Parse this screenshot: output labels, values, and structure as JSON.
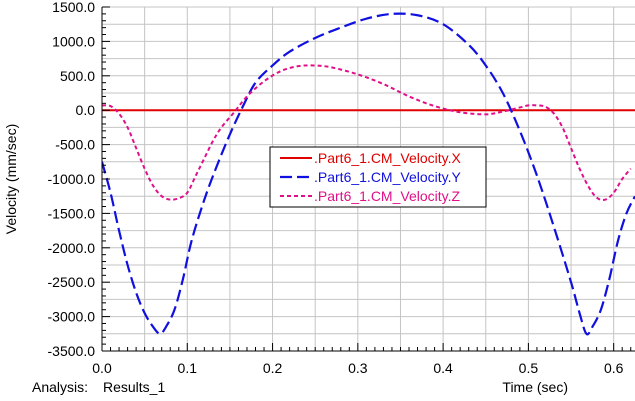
{
  "analysis": {
    "label": "Analysis:",
    "name": "Results_1"
  },
  "chart_data": {
    "type": "line",
    "xlabel": "Time (sec)",
    "ylabel": "Velocity (mm/sec)",
    "xlim": [
      0.0,
      0.625
    ],
    "ylim": [
      -3500.0,
      1500.0
    ],
    "x_ticks": [
      "0.0",
      "0.1",
      "0.2",
      "0.3",
      "0.4",
      "0.5",
      "0.6"
    ],
    "y_ticks": [
      "1500.0",
      "1000.0",
      "500.0",
      "0.0",
      "-500.0",
      "-1000.0",
      "-1500.0",
      "-2000.0",
      "-2500.0",
      "-3000.0",
      "-3500.0"
    ],
    "grid": true,
    "legend_placement": "center",
    "series": [
      {
        "name": ".Part6_1.CM_Velocity.X",
        "color": "#e00000",
        "style": "solid",
        "x": [
          0.0,
          0.625
        ],
        "y": [
          0,
          0
        ]
      },
      {
        "name": ".Part6_1.CM_Velocity.Y",
        "color": "#1010e0",
        "style": "dashed",
        "x": [
          0.0,
          0.01,
          0.02,
          0.03,
          0.04,
          0.05,
          0.06,
          0.068,
          0.075,
          0.085,
          0.095,
          0.105,
          0.12,
          0.135,
          0.15,
          0.165,
          0.18,
          0.2,
          0.22,
          0.25,
          0.28,
          0.31,
          0.34,
          0.37,
          0.4,
          0.43,
          0.45,
          0.47,
          0.49,
          0.51,
          0.53,
          0.55,
          0.56,
          0.568,
          0.575,
          0.585,
          0.595,
          0.605,
          0.615,
          0.625
        ],
        "y": [
          -750,
          -1200,
          -1750,
          -2250,
          -2650,
          -2950,
          -3150,
          -3250,
          -3150,
          -2900,
          -2450,
          -1900,
          -1300,
          -800,
          -350,
          50,
          400,
          650,
          850,
          1050,
          1200,
          1330,
          1400,
          1380,
          1250,
          950,
          650,
          250,
          -300,
          -950,
          -1700,
          -2500,
          -2950,
          -3250,
          -3150,
          -2900,
          -2450,
          -1900,
          -1500,
          -1250
        ]
      },
      {
        "name": ".Part6_1.CM_Velocity.Z",
        "color": "#e0108a",
        "style": "dotted",
        "x": [
          0.0,
          0.01,
          0.02,
          0.03,
          0.04,
          0.05,
          0.06,
          0.07,
          0.08,
          0.09,
          0.1,
          0.11,
          0.12,
          0.13,
          0.14,
          0.155,
          0.17,
          0.19,
          0.21,
          0.23,
          0.25,
          0.27,
          0.3,
          0.33,
          0.36,
          0.39,
          0.42,
          0.45,
          0.47,
          0.49,
          0.5,
          0.51,
          0.52,
          0.53,
          0.54,
          0.55,
          0.56,
          0.57,
          0.58,
          0.59,
          0.6,
          0.61,
          0.62
        ],
        "y": [
          70,
          60,
          -50,
          -250,
          -550,
          -850,
          -1100,
          -1250,
          -1300,
          -1280,
          -1200,
          -950,
          -700,
          -450,
          -250,
          -30,
          200,
          420,
          570,
          640,
          650,
          620,
          520,
          380,
          200,
          60,
          -30,
          -60,
          -20,
          40,
          70,
          70,
          50,
          -50,
          -250,
          -550,
          -850,
          -1100,
          -1270,
          -1300,
          -1200,
          -1000,
          -850
        ]
      }
    ]
  }
}
